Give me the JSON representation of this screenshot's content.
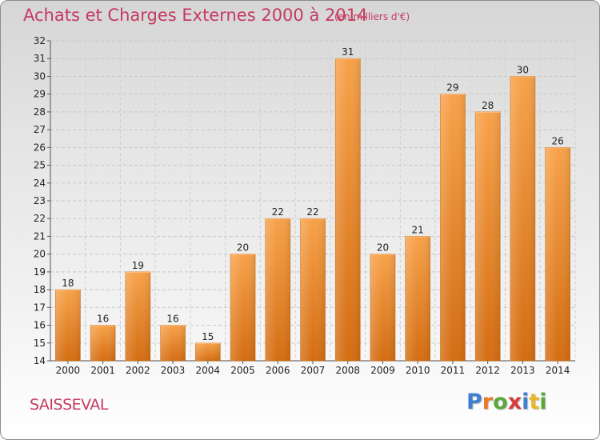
{
  "header": {
    "title": "Achats et Charges Externes 2000 à 2014",
    "unit": "(en milliers d'€)"
  },
  "footer": {
    "commune": "SAISSEVAL",
    "logo": {
      "letters": [
        "P",
        "r",
        "o",
        "x",
        "i",
        "t",
        "i"
      ],
      "colors": [
        "#3f7fcf",
        "#e77b2a",
        "#5aa83a",
        "#d73c3c",
        "#3f7fcf",
        "#e7b82a",
        "#5aa83a"
      ]
    }
  },
  "chart_data": {
    "type": "bar",
    "categories": [
      "2000",
      "2001",
      "2002",
      "2003",
      "2004",
      "2005",
      "2006",
      "2007",
      "2008",
      "2009",
      "2010",
      "2011",
      "2012",
      "2013",
      "2014"
    ],
    "values": [
      18,
      16,
      19,
      16,
      15,
      20,
      22,
      22,
      31,
      20,
      21,
      29,
      28,
      30,
      26
    ],
    "title": "Achats et Charges Externes 2000 à 2014",
    "ylim": [
      14,
      32
    ],
    "yticks": [
      14,
      15,
      16,
      17,
      18,
      19,
      20,
      21,
      22,
      23,
      24,
      25,
      26,
      27,
      28,
      29,
      30,
      31,
      32
    ],
    "grid": true,
    "bar_color": "#f0932e"
  }
}
